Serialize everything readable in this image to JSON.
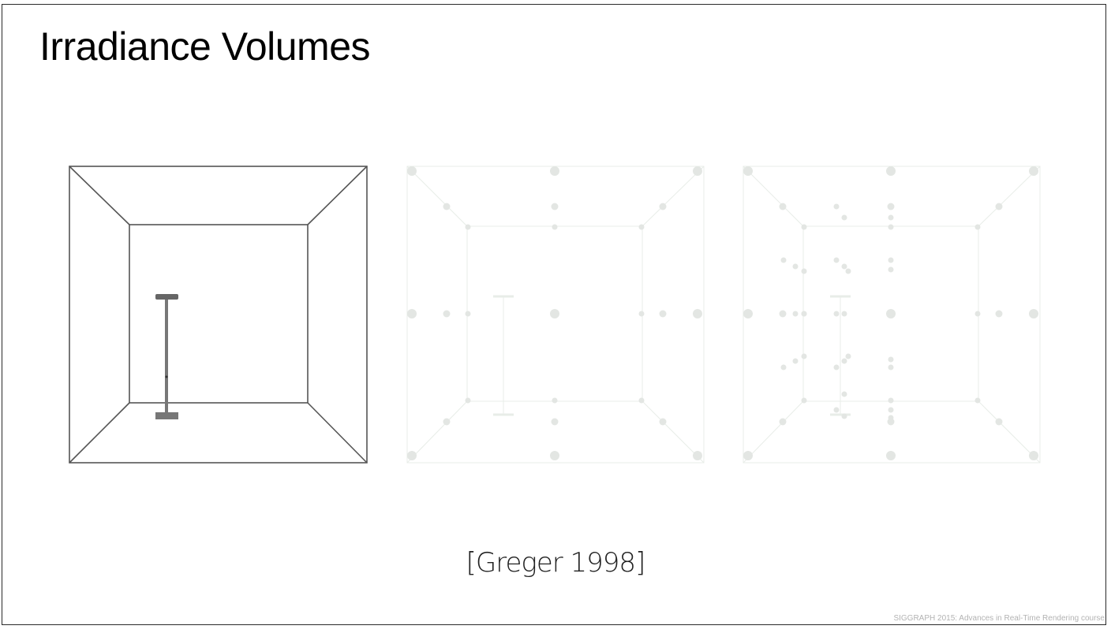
{
  "slide": {
    "title": "Irradiance Volumes",
    "citation": "[Greger 1998]",
    "footer": "SIGGRAPH 2015: Advances in Real-Time Rendering course"
  },
  "colors": {
    "room_lines": "#555555",
    "faint_lines": "#e6ece6",
    "sample_points": "#e3e6e3",
    "lamp": "#666666"
  }
}
